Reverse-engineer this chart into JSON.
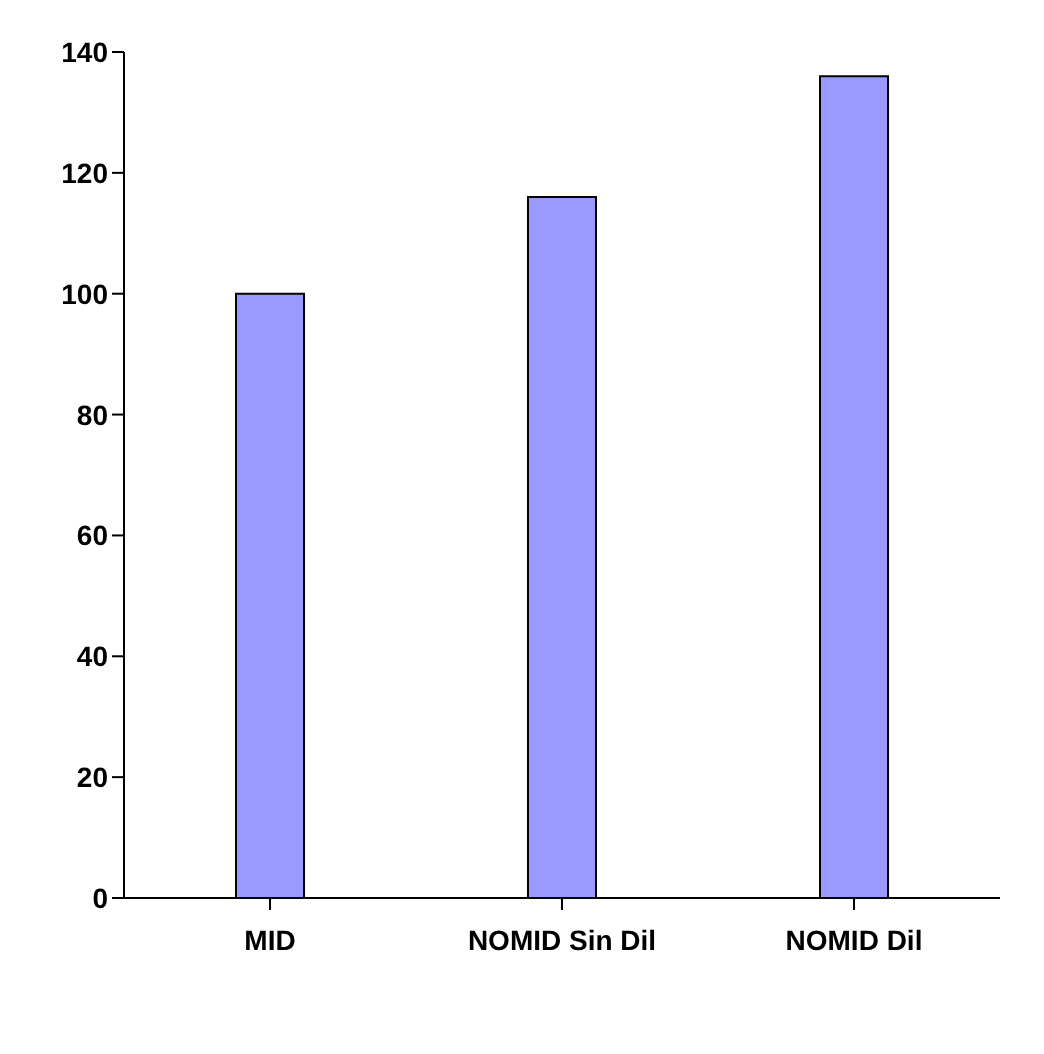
{
  "chart_data": {
    "type": "bar",
    "categories": [
      "MID",
      "NOMID Sin Dil",
      "NOMID Dil"
    ],
    "values": [
      100,
      116,
      136
    ],
    "color": "#9999ff",
    "ylim": [
      0,
      140
    ],
    "yticks": [
      0,
      20,
      40,
      60,
      80,
      100,
      120,
      140
    ],
    "grid": false,
    "legend": false
  }
}
